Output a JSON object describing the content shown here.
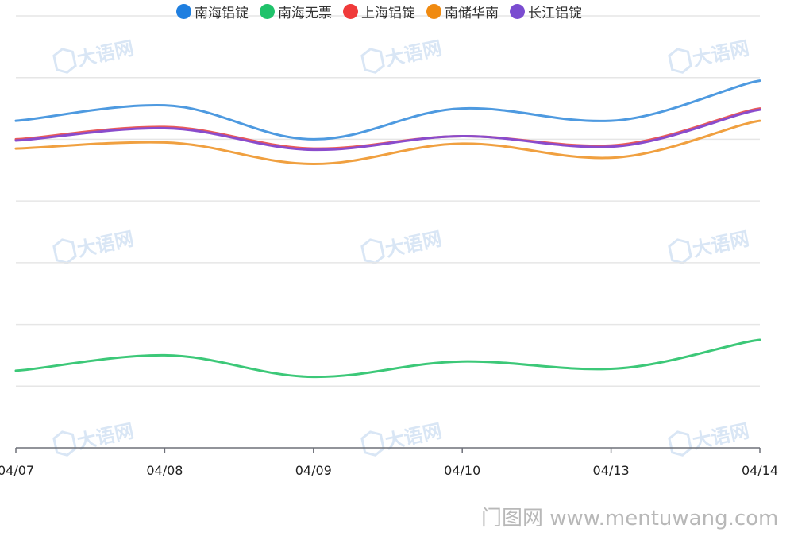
{
  "chart_data": {
    "type": "line",
    "x": [
      "04/07",
      "04/08",
      "04/09",
      "04/10",
      "04/13",
      "04/14"
    ],
    "x_tick_labels": [
      "04/07",
      "04/08",
      "04/09",
      "04/10",
      "04/13",
      "04/14"
    ],
    "ylim": [
      0,
      7
    ],
    "grid": true,
    "smooth": true,
    "legend_position": "bottom",
    "series": [
      {
        "name": "南海铝锭",
        "color": "#4e9ae0",
        "values": [
          5.3,
          5.55,
          5.0,
          5.5,
          5.3,
          5.95
        ]
      },
      {
        "name": "南海无票",
        "color": "#3cc878",
        "values": [
          1.25,
          1.5,
          1.15,
          1.4,
          1.28,
          1.75
        ]
      },
      {
        "name": "上海铝锭",
        "color": "#e85a5a",
        "values": [
          5.0,
          5.2,
          4.85,
          5.05,
          4.9,
          5.5
        ]
      },
      {
        "name": "南储华南",
        "color": "#f0a040",
        "values": [
          4.85,
          4.95,
          4.6,
          4.93,
          4.7,
          5.3
        ]
      },
      {
        "name": "长江铝锭",
        "color": "#8a4ccc",
        "values": [
          4.98,
          5.18,
          4.83,
          5.05,
          4.88,
          5.48
        ]
      }
    ]
  },
  "legend": {
    "items": [
      {
        "label": "南海铝锭",
        "color": "#1f7fe0"
      },
      {
        "label": "南海无票",
        "color": "#1fc26a"
      },
      {
        "label": "上海铝锭",
        "color": "#f03a3a"
      },
      {
        "label": "南储华南",
        "color": "#f08a10"
      },
      {
        "label": "长江铝锭",
        "color": "#7a4cd0"
      }
    ]
  },
  "watermark": {
    "text": "大语网",
    "site": "门图网 www.mentuwang.com"
  }
}
